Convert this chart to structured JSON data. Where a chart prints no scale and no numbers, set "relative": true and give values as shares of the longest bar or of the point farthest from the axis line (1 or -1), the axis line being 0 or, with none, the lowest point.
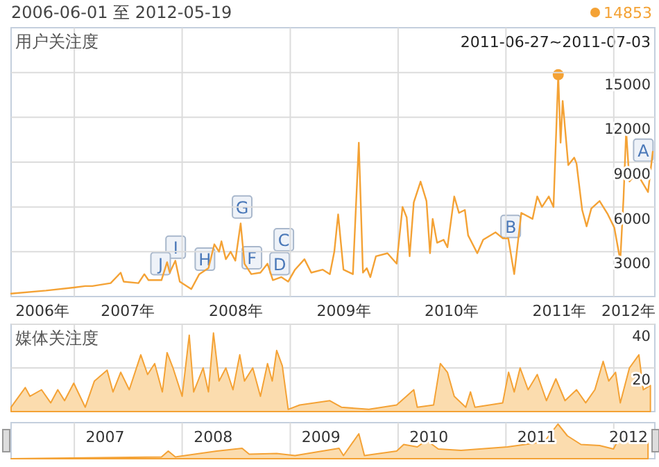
{
  "chart_data": [
    {
      "type": "line",
      "title": "2006-06-01 至 2012-05-19",
      "ylabel": "用户关注度",
      "color": "#f4a235",
      "grid": true,
      "xlim": [
        "2006-06-01",
        "2012-05-19"
      ],
      "ylim": [
        0,
        18000
      ],
      "yticks": [
        3000,
        6000,
        9000,
        12000,
        15000
      ],
      "xticks": [
        {
          "value": "2006-09-15",
          "label": "2006年"
        },
        {
          "value": "2007-01-01",
          "label": null
        },
        {
          "value": "2007-07-01",
          "label": "2007年"
        },
        {
          "value": "2008-01-01",
          "label": null
        },
        {
          "value": "2008-07-01",
          "label": "2008年"
        },
        {
          "value": "2009-01-01",
          "label": null
        },
        {
          "value": "2009-07-01",
          "label": "2009年"
        },
        {
          "value": "2010-01-01",
          "label": null
        },
        {
          "value": "2010-07-01",
          "label": "2010年"
        },
        {
          "value": "2011-01-01",
          "label": null
        },
        {
          "value": "2011-07-01",
          "label": "2011年"
        },
        {
          "value": "2012-01-01",
          "label": null
        },
        {
          "value": "2012-02-20",
          "label": "2012年"
        }
      ],
      "x": [
        "2006-06-01",
        "2006-09-27",
        "2006-12-30",
        "2007-02-07",
        "2007-03-03",
        "2007-05-04",
        "2007-06-07",
        "2007-06-17",
        "2007-08-06",
        "2007-08-26",
        "2007-09-09",
        "2007-10-23",
        "2007-11-11",
        "2007-11-20",
        "2007-12-09",
        "2007-12-24",
        "2008-02-01",
        "2008-02-28",
        "2008-03-30",
        "2008-04-19",
        "2008-05-05",
        "2008-05-13",
        "2008-05-28",
        "2008-06-13",
        "2008-06-29",
        "2008-07-17",
        "2008-07-30",
        "2008-08-22",
        "2008-09-22",
        "2008-10-16",
        "2008-11-03",
        "2008-12-02",
        "2008-12-25",
        "2009-01-17",
        "2009-02-18",
        "2009-03-13",
        "2009-04-21",
        "2009-05-15",
        "2009-05-30",
        "2009-06-12",
        "2009-06-30",
        "2009-08-01",
        "2009-08-21",
        "2009-09-04",
        "2009-09-17",
        "2009-09-29",
        "2009-10-18",
        "2009-11-26",
        "2009-12-27",
        "2010-01-16",
        "2010-01-30",
        "2010-02-09",
        "2010-02-23",
        "2010-03-18",
        "2010-04-07",
        "2010-04-19",
        "2010-04-28",
        "2010-05-13",
        "2010-06-04",
        "2010-06-17",
        "2010-07-10",
        "2010-07-26",
        "2010-08-15",
        "2010-08-26",
        "2010-09-26",
        "2010-10-16",
        "2010-11-27",
        "2010-12-21",
        "2011-01-09",
        "2011-01-29",
        "2011-02-22",
        "2011-04-01",
        "2011-04-17",
        "2011-05-03",
        "2011-05-26",
        "2011-06-11",
        "2011-06-27",
        "2011-07-05",
        "2011-07-12",
        "2011-07-31",
        "2011-08-20",
        "2011-08-28",
        "2011-09-16",
        "2011-10-01",
        "2011-10-17",
        "2011-11-14",
        "2011-12-12",
        "2012-01-03",
        "2012-01-23",
        "2012-02-03",
        "2012-02-12",
        "2012-02-23",
        "2012-03-10",
        "2012-04-02",
        "2012-04-26",
        "2012-05-12"
      ],
      "values": [
        200,
        400,
        600,
        700,
        700,
        900,
        1600,
        1000,
        900,
        1500,
        1100,
        1100,
        2300,
        1600,
        2400,
        1000,
        500,
        1500,
        1900,
        3500,
        3000,
        3700,
        2500,
        3000,
        2400,
        4900,
        2200,
        1500,
        1600,
        2200,
        1100,
        1300,
        1000,
        1800,
        2500,
        1600,
        1800,
        1500,
        3000,
        5500,
        1800,
        1500,
        10300,
        1600,
        1900,
        1300,
        2700,
        2900,
        2200,
        6000,
        5300,
        2700,
        6300,
        7700,
        6400,
        2900,
        5200,
        3600,
        3800,
        3300,
        6700,
        5600,
        5800,
        4100,
        2900,
        3800,
        4300,
        3900,
        3900,
        1500,
        5600,
        5200,
        6700,
        6000,
        6700,
        6000,
        14853,
        10300,
        13100,
        8800,
        9300,
        8900,
        5800,
        4700,
        5900,
        6400,
        5500,
        4600,
        2400,
        6600,
        11100,
        7700,
        8100,
        7800,
        7000,
        9700
      ],
      "annotations": [
        "14853",
        {
          "text": "2011-06-27~2011-07-03",
          "x": "2011-06-27",
          "y": 14853
        },
        {
          "text": "A",
          "x": "2012-04-10",
          "y": 9800
        },
        {
          "text": "B",
          "x": "2011-01-17",
          "y": 4700
        },
        {
          "text": "C",
          "x": "2008-12-10",
          "y": 3800
        },
        {
          "text": "D",
          "x": "2008-11-26",
          "y": 2200
        },
        {
          "text": "F",
          "x": "2008-08-24",
          "y": 2600
        },
        {
          "text": "G",
          "x": "2008-07-22",
          "y": 6000
        },
        {
          "text": "H",
          "x": "2008-03-18",
          "y": 2500
        },
        {
          "text": "I",
          "x": "2007-12-10",
          "y": 3300
        },
        {
          "text": "J",
          "x": "2007-10-20",
          "y": 2200
        }
      ]
    },
    {
      "type": "area",
      "ylabel": "媒体关注度",
      "color": "#f4a235",
      "grid": true,
      "tick_labels": "y",
      "xlim": [
        "2006-06-01",
        "2012-05-19"
      ],
      "ylim": [
        0,
        40
      ],
      "yticks": [
        20,
        40
      ],
      "xticks": [
        {
          "value": "2007-01-01",
          "label": null
        },
        {
          "value": "2008-01-01",
          "label": null
        },
        {
          "value": "2009-01-01",
          "label": null
        },
        {
          "value": "2010-01-01",
          "label": null
        },
        {
          "value": "2011-01-01",
          "label": null
        },
        {
          "value": "2012-01-01",
          "label": null
        }
      ],
      "x": [
        "2006-06-01",
        "2006-07-19",
        "2006-08-04",
        "2006-09-12",
        "2006-10-13",
        "2006-11-06",
        "2006-11-29",
        "2006-12-30",
        "2007-02-07",
        "2007-03-10",
        "2007-04-22",
        "2007-05-12",
        "2007-06-07",
        "2007-07-06",
        "2007-08-14",
        "2007-09-06",
        "2007-09-30",
        "2007-10-26",
        "2007-11-11",
        "2007-12-01",
        "2008-01-01",
        "2008-01-25",
        "2008-02-09",
        "2008-03-12",
        "2008-03-30",
        "2008-04-16",
        "2008-05-05",
        "2008-05-28",
        "2008-06-21",
        "2008-07-14",
        "2008-07-30",
        "2008-08-27",
        "2008-09-22",
        "2008-10-16",
        "2008-11-01",
        "2008-11-16",
        "2008-12-05",
        "2008-12-25",
        "2009-02-02",
        "2009-05-15",
        "2009-06-23",
        "2009-09-24",
        "2009-12-27",
        "2010-02-23",
        "2010-03-07",
        "2010-05-01",
        "2010-05-24",
        "2010-06-17",
        "2010-07-10",
        "2010-08-18",
        "2010-09-03",
        "2010-09-18",
        "2010-12-21",
        "2011-01-10",
        "2011-01-29",
        "2011-02-18",
        "2011-03-17",
        "2011-04-17",
        "2011-05-18",
        "2011-06-19",
        "2011-07-20",
        "2011-08-28",
        "2011-09-28",
        "2011-10-29",
        "2011-11-26",
        "2011-12-15",
        "2012-01-07",
        "2012-01-23",
        "2012-02-23",
        "2012-03-26",
        "2012-04-10",
        "2012-05-04"
      ],
      "values": [
        2,
        11,
        7,
        10,
        4,
        10,
        5,
        13,
        2,
        14,
        19,
        9,
        18,
        10,
        26,
        17,
        22,
        9,
        27,
        20,
        7,
        35,
        9,
        20,
        9,
        36,
        14,
        20,
        10,
        26,
        14,
        20,
        7,
        22,
        14,
        28,
        21,
        1,
        3,
        5,
        2,
        1,
        3,
        10,
        2,
        3,
        22,
        18,
        7,
        2,
        9,
        2,
        4,
        18,
        9,
        20,
        10,
        17,
        5,
        15,
        5,
        10,
        4,
        10,
        23,
        14,
        18,
        4,
        20,
        26,
        10,
        12
      ]
    },
    {
      "type": "area",
      "relative": true,
      "color": "#f4a235",
      "grid": "x",
      "tick_labels": "x",
      "xlim": [
        "2006-06-01",
        "2012-05-19"
      ],
      "xticks": [
        {
          "value": "2007-01-01",
          "label": null
        },
        {
          "value": "2007-04-15",
          "label": "2007"
        },
        {
          "value": "2008-01-01",
          "label": null
        },
        {
          "value": "2008-04-15",
          "label": "2008"
        },
        {
          "value": "2009-01-01",
          "label": null
        },
        {
          "value": "2009-04-15",
          "label": "2009"
        },
        {
          "value": "2010-01-01",
          "label": null
        },
        {
          "value": "2010-04-15",
          "label": "2010"
        },
        {
          "value": "2011-01-01",
          "label": null
        },
        {
          "value": "2011-04-15",
          "label": "2011"
        },
        {
          "value": "2012-01-01",
          "label": null
        },
        {
          "value": "2012-02-20",
          "label": "2012"
        }
      ],
      "x": [
        "2006-06-01",
        "2007-10-23",
        "2007-11-15",
        "2007-12-09",
        "2008-04-27",
        "2008-07-22",
        "2008-08-15",
        "2008-11-16",
        "2009-01-17",
        "2009-06-15",
        "2009-06-30",
        "2009-08-21",
        "2009-09-09",
        "2009-12-27",
        "2010-01-20",
        "2010-03-07",
        "2010-04-07",
        "2010-05-17",
        "2010-08-02",
        "2011-01-06",
        "2011-05-11",
        "2011-06-26",
        "2011-07-28",
        "2011-09-12",
        "2011-11-14",
        "2011-12-31",
        "2012-01-23",
        "2012-03-02",
        "2012-04-26"
      ],
      "values": [
        0,
        0.05,
        0.22,
        0.05,
        0.22,
        0.3,
        0.13,
        0.15,
        0.09,
        0.3,
        0.09,
        0.72,
        0.09,
        0.22,
        0.41,
        0.34,
        0.53,
        0.28,
        0.24,
        0.34,
        0.49,
        1,
        0.66,
        0.41,
        0.38,
        0.28,
        0.66,
        0.47,
        0.47
      ]
    }
  ]
}
